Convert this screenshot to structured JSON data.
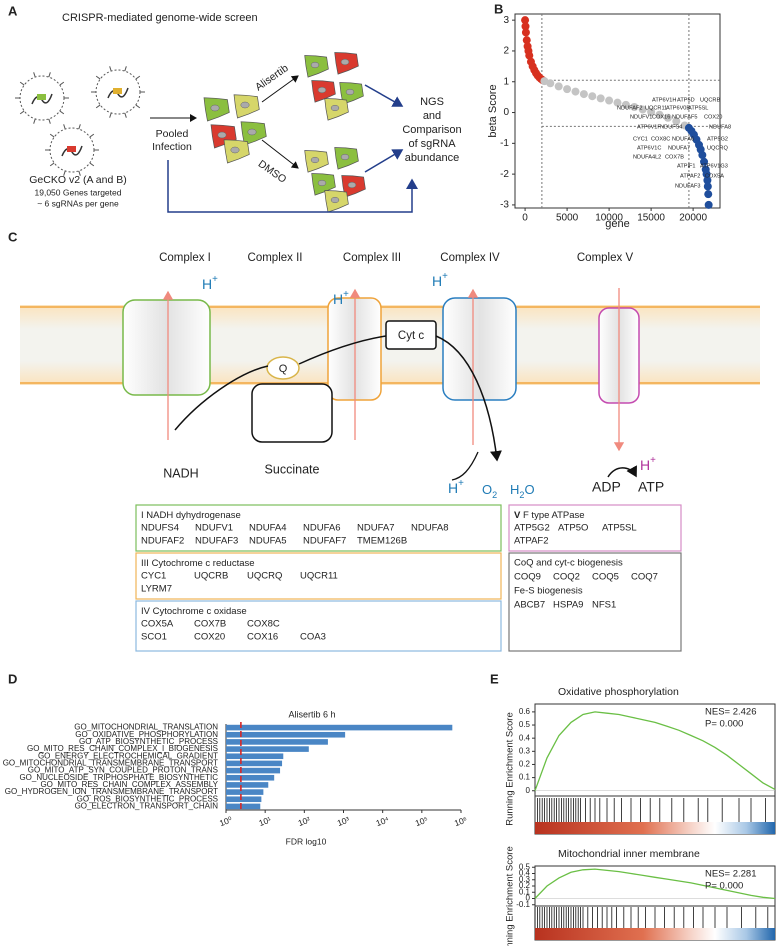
{
  "panel_labels": [
    "A",
    "B",
    "C",
    "D",
    "E"
  ],
  "panel_a": {
    "title": "CRISPR-mediated genome-wide screen",
    "library": "GeCKO v2 (A and B)",
    "genes_targeted": "19,050 Genes targeted",
    "sgrnas": "~ 6 sgRNAs per gene",
    "pooled": [
      "Pooled",
      "Infection"
    ],
    "treatment": "Alisertib",
    "control": "DMSO",
    "readout": [
      "NGS",
      "and",
      "Comparison",
      "of sgRNA",
      "abundance"
    ]
  },
  "panel_c": {
    "complexes": [
      "Complex I",
      "Complex II",
      "Complex III",
      "Complex IV",
      "Complex V"
    ],
    "protons": [
      [
        "H",
        "+"
      ],
      [
        "H",
        "+"
      ],
      [
        "H",
        "+"
      ],
      [
        "H",
        "+"
      ],
      [
        "H",
        "+"
      ]
    ],
    "quinone": "Q",
    "cytochrome": "Cyt c",
    "nadh": "NADH",
    "succinate": "Succinate",
    "oxygen": [
      "O",
      "2"
    ],
    "water": [
      "H",
      "2",
      "O"
    ],
    "adp": "ADP",
    "atp": "ATP",
    "boxes": [
      {
        "numeral": "I",
        "name": "NADH dyhydrogenase",
        "rows": [
          [
            "NDUFS4",
            "NDUFV1",
            "NDUFA4",
            "NDUFA6",
            "NDUFA7",
            "NDUFA8"
          ],
          [
            "NDUFAF2",
            "NDUFAF3",
            "NDUFA5",
            "NDUFAF7",
            "TMEM126B"
          ]
        ]
      },
      {
        "numeral": "III",
        "name": "Cytochrome c reductase",
        "rows": [
          [
            "CYC1",
            "UQCRB",
            "UQCRQ",
            "UQCR11"
          ],
          [
            "LYRM7"
          ]
        ]
      },
      {
        "numeral": "IV",
        "name": "Cytochrome c oxidase",
        "rows": [
          [
            "COX5A",
            "COX7B",
            "COX8C"
          ],
          [
            "SCO1",
            "COX20",
            "COX16",
            "COA3"
          ]
        ]
      },
      {
        "numeral": "V",
        "name": "F type ATPase",
        "rows": [
          [
            "ATP5G2",
            "ATP5O",
            "ATP5SL"
          ],
          [
            "ATPAF2"
          ]
        ]
      }
    ],
    "biogenesis": [
      {
        "heading": "CoQ and cyt-c biogenesis",
        "genes": [
          "COQ9",
          "COQ2",
          "COQ5",
          "COQ7"
        ]
      },
      {
        "heading": "Fe-S biogenesis",
        "genes": [
          "ABCB7",
          "HSPA9",
          "NFS1"
        ]
      }
    ]
  },
  "chart_data": [
    {
      "type": "scatter",
      "x_label": "gene",
      "y_label": "beta Score",
      "xlim": [
        -1200,
        23200
      ],
      "ylim": [
        -3.1,
        3.2
      ],
      "xticks": [
        0,
        5000,
        10000,
        15000,
        20000
      ],
      "yticks": [
        -3,
        -2,
        -1,
        0,
        1,
        2,
        3
      ],
      "vlines": [
        2000,
        19500
      ],
      "hlines": [
        1.05,
        -0.45
      ],
      "series": [
        {
          "color": "#d7301f",
          "x": [
            0,
            50,
            100,
            200,
            300,
            400,
            500,
            700,
            900,
            1100,
            1300,
            1500,
            1700,
            1900,
            2100
          ],
          "values": [
            3.0,
            2.8,
            2.6,
            2.35,
            2.15,
            2.0,
            1.85,
            1.65,
            1.5,
            1.38,
            1.28,
            1.2,
            1.14,
            1.09,
            1.05
          ]
        },
        {
          "color": "#c4c4c4",
          "x": [
            2300,
            3000,
            4000,
            5000,
            6000,
            7000,
            8000,
            9000,
            10000,
            11000,
            12000,
            13000,
            14000,
            15000,
            16000,
            17000,
            18000,
            19000
          ],
          "values": [
            1.02,
            0.95,
            0.85,
            0.76,
            0.68,
            0.6,
            0.53,
            0.46,
            0.39,
            0.32,
            0.25,
            0.18,
            0.1,
            0.02,
            -0.07,
            -0.17,
            -0.28,
            -0.42
          ]
        },
        {
          "color": "#1f4e9c",
          "x": [
            19500,
            19800,
            20100,
            20400,
            20700,
            20900,
            21100,
            21300,
            21500,
            21600,
            21700,
            21750,
            21800,
            21850
          ],
          "values": [
            -0.5,
            -0.6,
            -0.72,
            -0.88,
            -1.05,
            -1.2,
            -1.38,
            -1.6,
            -1.85,
            -2.0,
            -2.2,
            -2.4,
            -2.65,
            -3.0
          ]
        }
      ],
      "annotations": [
        "ATP6V1H",
        "ATP5D",
        "UQCRB",
        "NDUFAF2",
        "UQCR11",
        "ATP6V0B",
        "ATP5SL",
        "NDUFV1",
        "COX16",
        "NDUFAF5",
        "COX20",
        "ATP6V1F",
        "NDUFS4",
        "NDUFA8",
        "CYC1",
        "COX8C",
        "NDUFA6",
        "ATP5G2",
        "ATP6V1C",
        "NDUFA7",
        "UQCRQ",
        "NDUFA4L2",
        "COX7B",
        "ATPIF1",
        "ATP6V1G3",
        "ATPAF2",
        "COX5A",
        "NDUFAF3"
      ]
    },
    {
      "type": "bar",
      "orientation": "horizontal",
      "log_scale": true,
      "title": "Alisertib 6 h",
      "x_label": "FDR log10",
      "color": "#4a86c5",
      "threshold": 2.4,
      "threshold_color": "#d62728",
      "categories": [
        "GO_MITOCHONDRIAL_TRANSLATION",
        "GO_OXIDATIVE_PHOSPHORYLATION",
        "GO_ATP_BIOSYNTHETIC_PROCESS",
        "GO_MITO_RES_CHAIN_COMPLEX_I_BIOGENESIS",
        "GO_ENERGY_ELECTROCHEMICAL_GRADIENT",
        "GO_MITOCHONDRIAL_TRANSMEMBRANE_TRANSPORT",
        "GO_MITO_ATP_SYN_COUPLED_PROTON_TRANS",
        "GO_NUCLEOSIDE_TRIPHOSPHATE_BIOSYNTHETIC",
        "GO_MITO_RES_CHAIN_COMPLEX_ASSEMBLY",
        "GO_HYDROGEN_ION_TRANSMEMBRANE_TRANSPORT",
        "GO_ROS_BIOSYNTHETIC_PROCESS",
        "GO_ELECTRON_TRANSPORT_CHAIN"
      ],
      "values": [
        600000,
        1100,
        400,
        130,
        29,
        27,
        24,
        17,
        12,
        9,
        8,
        7.5
      ],
      "xlim": [
        1,
        1000000
      ],
      "xticks": [
        {
          "value": 1,
          "label": "10⁰"
        },
        {
          "value": 10,
          "label": "10¹"
        },
        {
          "value": 100,
          "label": "10²"
        },
        {
          "value": 1000,
          "label": "10³"
        },
        {
          "value": 10000,
          "label": "10⁴"
        },
        {
          "value": 100000,
          "label": "10⁵"
        },
        {
          "value": 1000000,
          "label": "10⁶"
        }
      ]
    },
    {
      "type": "line",
      "title": "Oxidative phosphorylation",
      "y_label": "Running Enrichment Score",
      "nes": "NES= 2.426",
      "p": "P= 0.000",
      "color": "#6abf45",
      "xlim": [
        0,
        100
      ],
      "ylim": [
        -0.04,
        0.66
      ],
      "yticks": [
        0,
        0.1,
        0.2,
        0.3,
        0.4,
        0.5,
        0.6
      ],
      "x": [
        0,
        5,
        10,
        15,
        20,
        25,
        30,
        35,
        40,
        45,
        50,
        55,
        60,
        65,
        70,
        75,
        80,
        85,
        90,
        95,
        100
      ],
      "values": [
        0,
        0.25,
        0.42,
        0.52,
        0.58,
        0.6,
        0.59,
        0.58,
        0.56,
        0.54,
        0.52,
        0.49,
        0.46,
        0.42,
        0.38,
        0.33,
        0.27,
        0.2,
        0.13,
        0.06,
        0.01
      ],
      "hits": [
        1,
        2,
        3,
        4,
        5,
        6,
        7,
        8,
        9,
        10,
        11,
        12,
        13,
        14,
        15,
        16,
        17,
        18,
        19,
        21,
        23,
        25,
        27,
        30,
        33,
        36,
        40,
        44,
        48,
        52,
        57,
        62,
        68,
        72,
        78,
        85,
        90,
        96
      ]
    },
    {
      "type": "line",
      "title": "Mitochondrial inner membrane",
      "y_label": "Running Enrichment Score",
      "nes": "NES= 2.281",
      "p": "P= 0.000",
      "color": "#6abf45",
      "xlim": [
        0,
        100
      ],
      "ylim": [
        -0.12,
        0.52
      ],
      "yticks": [
        -0.1,
        0,
        0.1,
        0.2,
        0.3,
        0.4,
        0.5
      ],
      "x": [
        0,
        5,
        10,
        15,
        20,
        25,
        30,
        35,
        40,
        45,
        50,
        55,
        60,
        65,
        70,
        75,
        80,
        85,
        90,
        95,
        100
      ],
      "values": [
        0,
        0.2,
        0.33,
        0.42,
        0.46,
        0.47,
        0.45,
        0.43,
        0.4,
        0.37,
        0.34,
        0.31,
        0.28,
        0.25,
        0.21,
        0.17,
        0.13,
        0.09,
        0.05,
        0.02,
        0
      ],
      "hits": [
        0,
        1,
        2,
        3,
        4,
        5,
        6,
        7,
        8,
        9,
        10,
        11,
        12,
        13,
        14,
        15,
        16,
        17,
        18,
        19,
        20,
        22,
        24,
        26,
        28,
        30,
        32,
        34,
        37,
        40,
        43,
        46,
        50,
        54,
        58,
        62,
        66,
        70,
        75,
        80,
        86,
        92,
        97
      ]
    }
  ]
}
